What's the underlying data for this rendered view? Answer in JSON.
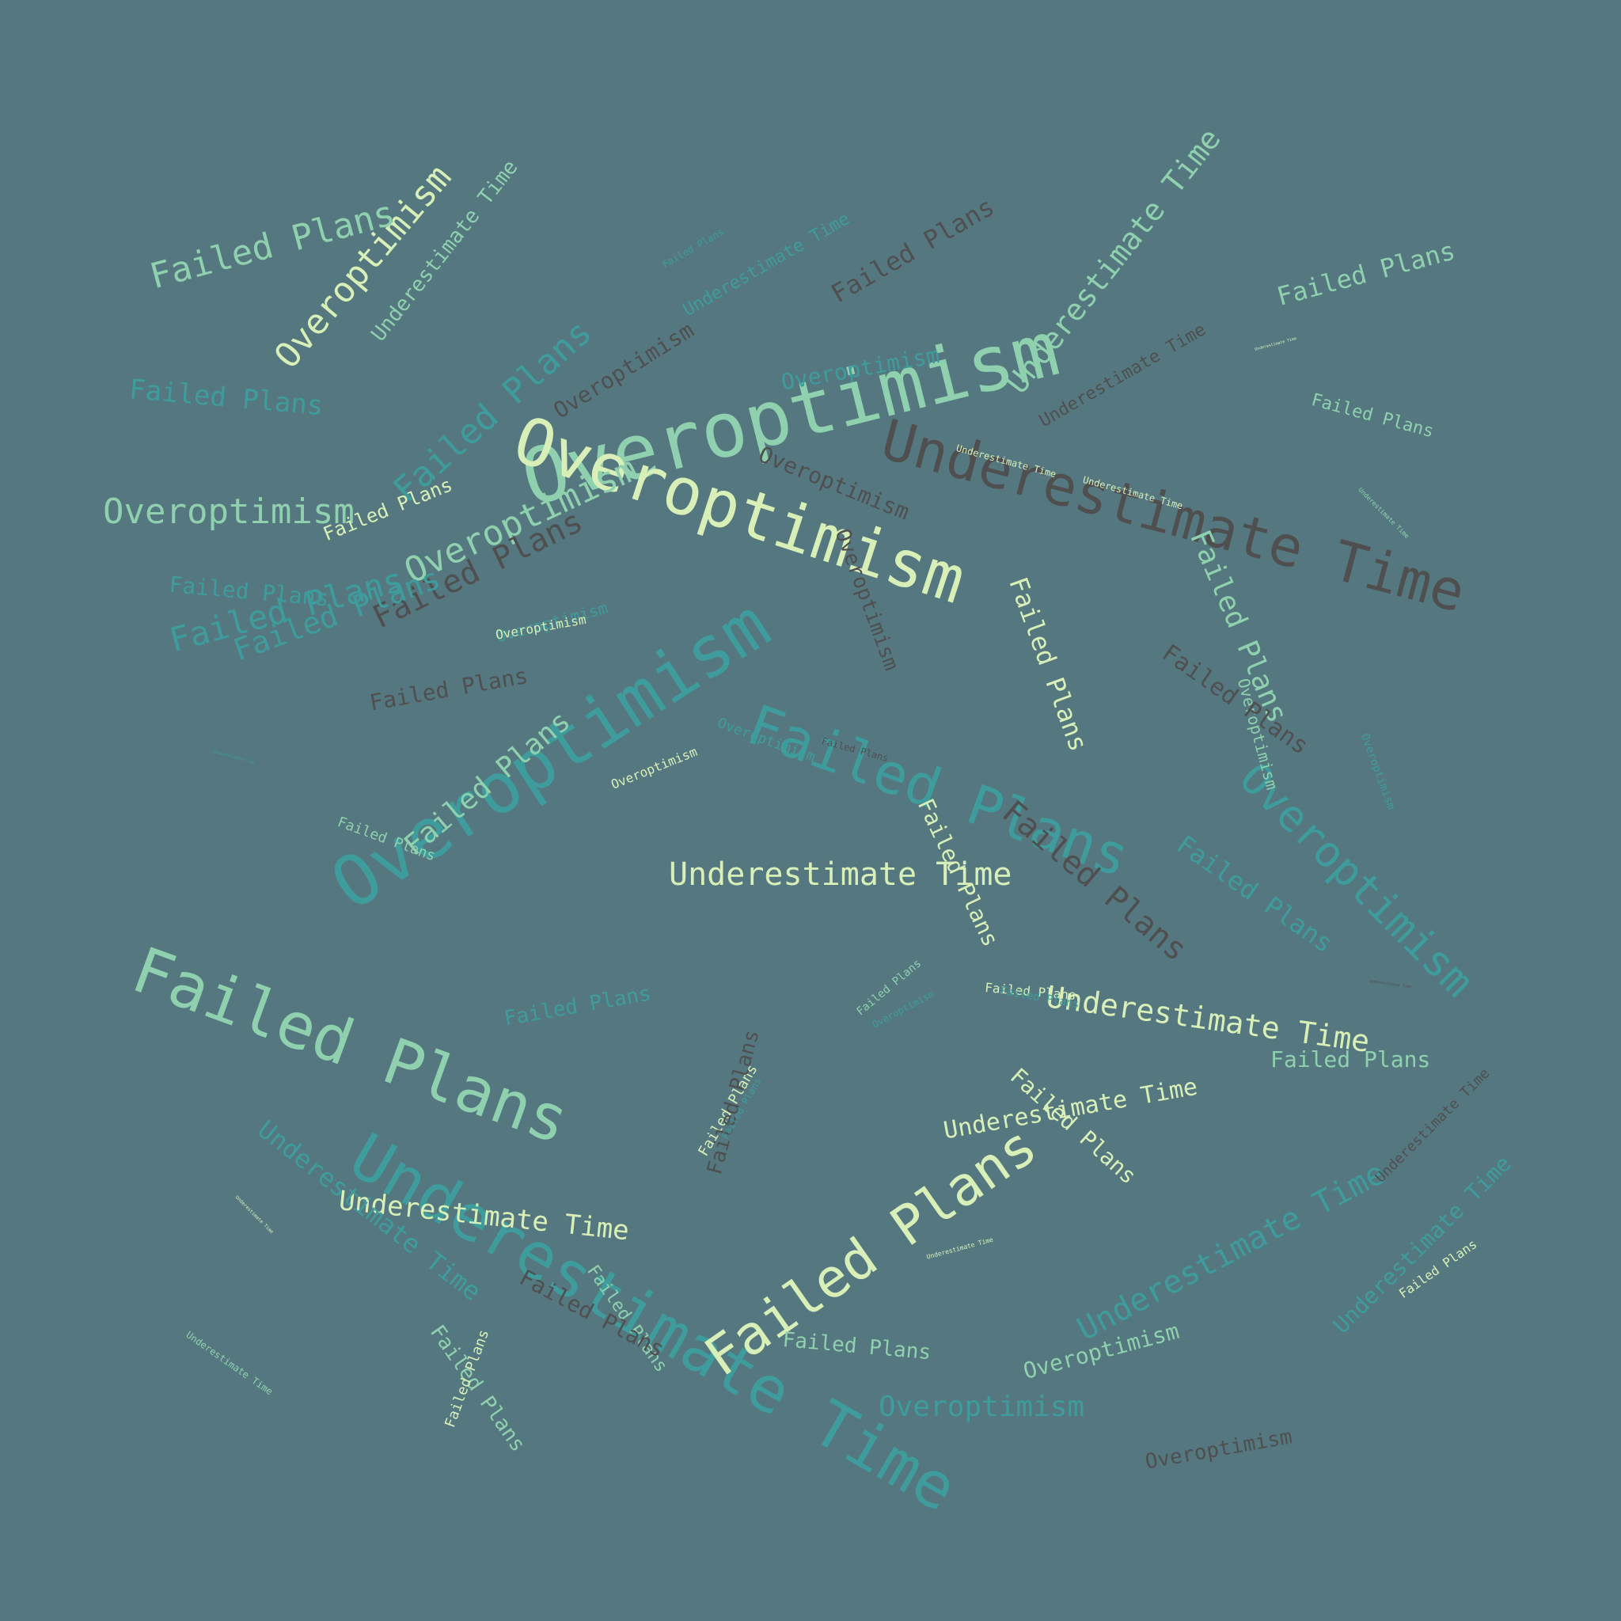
{
  "colors": {
    "background": "#557880",
    "mint": "#8fd1ae",
    "cream": "#d8f0b8",
    "teal": "#3e9c9c",
    "brown": "#4f4f50"
  },
  "words": [
    {
      "text": "Overoptimism",
      "color": "mint"
    },
    {
      "text": "Overoptimism",
      "color": "cream"
    },
    {
      "text": "Overoptimism",
      "color": "cream"
    },
    {
      "text": "Overoptimism",
      "color": "teal"
    },
    {
      "text": "Overoptimism",
      "color": "mint"
    },
    {
      "text": "Overoptimism",
      "color": "teal"
    },
    {
      "text": "Overoptimism",
      "color": "brown"
    },
    {
      "text": "Overoptimism",
      "color": "brown"
    },
    {
      "text": "Overoptimism",
      "color": "brown"
    },
    {
      "text": "Overoptimism",
      "color": "teal"
    },
    {
      "text": "Overoptimism",
      "color": "mint"
    },
    {
      "text": "Overoptimism",
      "color": "teal"
    },
    {
      "text": "Overoptimism",
      "color": "brown"
    },
    {
      "text": "Overoptimism",
      "color": "teal"
    },
    {
      "text": "Overoptimism",
      "color": "mint"
    },
    {
      "text": "Overoptimism",
      "color": "mint"
    },
    {
      "text": "Overoptimism",
      "color": "cream"
    },
    {
      "text": "Overoptimism",
      "color": "cream"
    },
    {
      "text": "Overoptimism",
      "color": "teal"
    },
    {
      "text": "Overoptimism",
      "color": "teal"
    },
    {
      "text": "Overoptimism",
      "color": "teal"
    },
    {
      "text": "Underestimate Time",
      "color": "brown"
    },
    {
      "text": "Underestimate Time",
      "color": "mint"
    },
    {
      "text": "Underestimate Time",
      "color": "teal"
    },
    {
      "text": "Underestimate Time",
      "color": "mint"
    },
    {
      "text": "Underestimate Time",
      "color": "teal"
    },
    {
      "text": "Underestimate Time",
      "color": "brown"
    },
    {
      "text": "Underestimate Time",
      "color": "cream"
    },
    {
      "text": "Underestimate Time",
      "color": "cream"
    },
    {
      "text": "Underestimate Time",
      "color": "cream"
    },
    {
      "text": "Underestimate Time",
      "color": "cream"
    },
    {
      "text": "Underestimate Time",
      "color": "teal"
    },
    {
      "text": "Underestimate Time",
      "color": "teal"
    },
    {
      "text": "Underestimate Time",
      "color": "teal"
    },
    {
      "text": "Underestimate Time",
      "color": "brown"
    },
    {
      "text": "Underestimate Time",
      "color": "cream"
    },
    {
      "text": "Underestimate Time",
      "color": "cream"
    },
    {
      "text": "Underestimate Time",
      "color": "mint"
    },
    {
      "text": "Underestimate Time",
      "color": "mint"
    },
    {
      "text": "Underestimate Time",
      "color": "cream"
    },
    {
      "text": "Underestimate Time",
      "color": "cream"
    },
    {
      "text": "Underestimate Time",
      "color": "teal"
    },
    {
      "text": "Underestimate Time",
      "color": "cream"
    },
    {
      "text": "Underestimate Time",
      "color": "brown"
    },
    {
      "text": "Failed Plans",
      "color": "mint"
    },
    {
      "text": "Failed Plans",
      "color": "teal"
    },
    {
      "text": "Failed Plans",
      "color": "mint"
    },
    {
      "text": "Failed Plans",
      "color": "cream"
    },
    {
      "text": "Failed Plans",
      "color": "brown"
    },
    {
      "text": "Failed Plans",
      "color": "teal"
    },
    {
      "text": "Failed Plans",
      "color": "teal"
    },
    {
      "text": "Failed Plans",
      "color": "teal"
    },
    {
      "text": "Failed Plans",
      "color": "teal"
    },
    {
      "text": "Failed Plans",
      "color": "brown"
    },
    {
      "text": "Failed Plans",
      "color": "teal"
    },
    {
      "text": "Failed Plans",
      "color": "mint"
    },
    {
      "text": "Failed Plans",
      "color": "mint"
    },
    {
      "text": "Failed Plans",
      "color": "cream"
    },
    {
      "text": "Failed Plans",
      "color": "mint"
    },
    {
      "text": "Failed Plans",
      "color": "cream"
    },
    {
      "text": "Failed Plans",
      "color": "brown"
    },
    {
      "text": "Failed Plans",
      "color": "brown"
    },
    {
      "text": "Failed Plans",
      "color": "brown"
    },
    {
      "text": "Failed Plans",
      "color": "mint"
    },
    {
      "text": "Failed Plans",
      "color": "mint"
    },
    {
      "text": "Failed Plans",
      "color": "teal"
    },
    {
      "text": "Failed Plans",
      "color": "cream"
    },
    {
      "text": "Failed Plans",
      "color": "teal"
    },
    {
      "text": "Failed Plans",
      "color": "cream"
    },
    {
      "text": "Failed Plans",
      "color": "cream"
    },
    {
      "text": "Failed Plans",
      "color": "mint"
    },
    {
      "text": "Failed Plans",
      "color": "cream"
    },
    {
      "text": "Failed Plans",
      "color": "brown"
    },
    {
      "text": "Failed Plans",
      "color": "teal"
    },
    {
      "text": "Failed Plans",
      "color": "cream"
    },
    {
      "text": "Failed Plans",
      "color": "mint"
    },
    {
      "text": "Failed Plans",
      "color": "brown"
    },
    {
      "text": "Failed Plans",
      "color": "brown"
    },
    {
      "text": "Failed Plans",
      "color": "teal"
    },
    {
      "text": "Failed Plans",
      "color": "mint"
    },
    {
      "text": "Failed Plans",
      "color": "mint"
    },
    {
      "text": "Failed Plans",
      "color": "mint"
    },
    {
      "text": "Failed Plans",
      "color": "cream"
    },
    {
      "text": "Failed Plans",
      "color": "teal"
    }
  ]
}
